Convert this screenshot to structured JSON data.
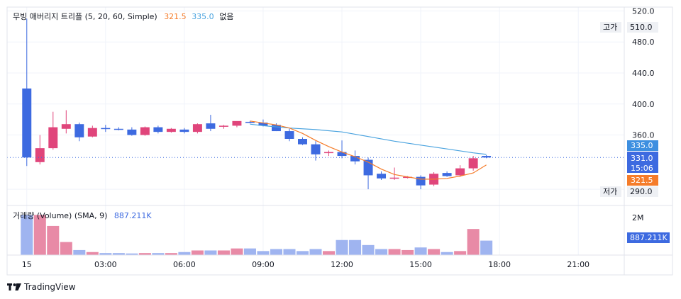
{
  "legend_main": {
    "title": "무빙 애버리지 트리플 (5, 20, 60, Simple)",
    "v1": "321.5",
    "v2": "335.0",
    "v3": "없음"
  },
  "legend_volume": {
    "title": "거래량 (Volume) (SMA, 9)",
    "value": "887.211K"
  },
  "high_label": "고가",
  "low_label": "저가",
  "price_tags": {
    "ma_long": "335.0",
    "last": "331.0",
    "countdown": "15:06",
    "ma_short": "321.5",
    "high": "510.0",
    "low": "290.0"
  },
  "volume_tags": {
    "top": "2M",
    "sma": "887.211K"
  },
  "brand": "TradingView",
  "colors": {
    "up": "#e0457b",
    "down": "#3d6ae0",
    "up_vol": "#e88aa6",
    "down_vol": "#9fb4f0",
    "ma_short": "#f57c2a",
    "ma_long": "#4aa3df",
    "last_line": "#3d6ae0"
  },
  "chart_data": {
    "type": "candlestick",
    "y_ticks": [
      290,
      360,
      400,
      440,
      480,
      520
    ],
    "y_tick_labels": [
      "290.0",
      "360.0",
      "400.0",
      "440.0",
      "480.0",
      "520.0"
    ],
    "ylim": [
      270,
      525
    ],
    "x_tick_labels": [
      "15",
      "03:00",
      "06:00",
      "09:00",
      "12:00",
      "15:00",
      "18:00",
      "21:00"
    ],
    "x_tick_hours": [
      0,
      3,
      6,
      9,
      12,
      15,
      18,
      21
    ],
    "xlim_hours": [
      -0.75,
      22.75
    ],
    "last_price": 331,
    "candles": [
      {
        "t": 0,
        "o": 420,
        "h": 510,
        "l": 320,
        "c": 331
      },
      {
        "t": 0.5,
        "o": 325,
        "h": 360,
        "l": 322,
        "c": 343
      },
      {
        "t": 1,
        "o": 343,
        "h": 390,
        "l": 341,
        "c": 370
      },
      {
        "t": 1.5,
        "o": 368,
        "h": 392,
        "l": 362,
        "c": 374
      },
      {
        "t": 2,
        "o": 374,
        "h": 376,
        "l": 352,
        "c": 357
      },
      {
        "t": 2.5,
        "o": 358,
        "h": 372,
        "l": 357,
        "c": 369
      },
      {
        "t": 3,
        "o": 369,
        "h": 373,
        "l": 364,
        "c": 368
      },
      {
        "t": 3.5,
        "o": 368,
        "h": 370,
        "l": 366,
        "c": 367
      },
      {
        "t": 4,
        "o": 367,
        "h": 370,
        "l": 359,
        "c": 360
      },
      {
        "t": 4.5,
        "o": 360,
        "h": 371,
        "l": 359,
        "c": 370
      },
      {
        "t": 5,
        "o": 370,
        "h": 372,
        "l": 362,
        "c": 364
      },
      {
        "t": 5.5,
        "o": 364,
        "h": 369,
        "l": 363,
        "c": 368
      },
      {
        "t": 6,
        "o": 367,
        "h": 369,
        "l": 362,
        "c": 364
      },
      {
        "t": 6.5,
        "o": 364,
        "h": 375,
        "l": 362,
        "c": 374
      },
      {
        "t": 7,
        "o": 375,
        "h": 386,
        "l": 365,
        "c": 368
      },
      {
        "t": 7.5,
        "o": 371,
        "h": 373,
        "l": 368,
        "c": 372
      },
      {
        "t": 8,
        "o": 372,
        "h": 377,
        "l": 370,
        "c": 378
      },
      {
        "t": 8.5,
        "o": 377,
        "h": 378,
        "l": 375,
        "c": 376
      },
      {
        "t": 9,
        "o": 376,
        "h": 380,
        "l": 371,
        "c": 372
      },
      {
        "t": 9.5,
        "o": 373,
        "h": 375,
        "l": 365,
        "c": 365
      },
      {
        "t": 10,
        "o": 365,
        "h": 368,
        "l": 352,
        "c": 355
      },
      {
        "t": 10.5,
        "o": 355,
        "h": 357,
        "l": 347,
        "c": 348
      },
      {
        "t": 11,
        "o": 348,
        "h": 352,
        "l": 327,
        "c": 335
      },
      {
        "t": 11.5,
        "o": 337,
        "h": 340,
        "l": 333,
        "c": 338
      },
      {
        "t": 12,
        "o": 338,
        "h": 353,
        "l": 330,
        "c": 333
      },
      {
        "t": 12.5,
        "o": 333,
        "h": 340,
        "l": 322,
        "c": 326
      },
      {
        "t": 13,
        "o": 328,
        "h": 331,
        "l": 290,
        "c": 308
      },
      {
        "t": 13.5,
        "o": 310,
        "h": 313,
        "l": 302,
        "c": 304
      },
      {
        "t": 14,
        "o": 304,
        "h": 318,
        "l": 302,
        "c": 305
      },
      {
        "t": 14.5,
        "o": 306,
        "h": 307,
        "l": 304,
        "c": 306
      },
      {
        "t": 15,
        "o": 306,
        "h": 308,
        "l": 290,
        "c": 295
      },
      {
        "t": 15.5,
        "o": 296,
        "h": 312,
        "l": 294,
        "c": 310
      },
      {
        "t": 16,
        "o": 311,
        "h": 313,
        "l": 306,
        "c": 307
      },
      {
        "t": 16.5,
        "o": 308,
        "h": 321,
        "l": 306,
        "c": 317
      },
      {
        "t": 17,
        "o": 317,
        "h": 333,
        "l": 314,
        "c": 330
      },
      {
        "t": 17.5,
        "o": 333,
        "h": 334,
        "l": 330,
        "c": 331
      }
    ],
    "volume_ylim": [
      0,
      2400000
    ],
    "volume": [
      2000000,
      2000000,
      1450000,
      650000,
      250000,
      150000,
      100000,
      100000,
      80000,
      100000,
      100000,
      100000,
      150000,
      230000,
      230000,
      230000,
      330000,
      330000,
      200000,
      300000,
      300000,
      200000,
      300000,
      200000,
      750000,
      750000,
      500000,
      300000,
      300000,
      250000,
      380000,
      300000,
      150000,
      200000,
      1300000,
      720000
    ],
    "ma_short": [
      [
        8.5,
        378
      ],
      [
        9.5,
        373
      ],
      [
        10,
        369
      ],
      [
        10.5,
        362
      ],
      [
        11,
        353
      ],
      [
        11.5,
        345
      ],
      [
        12,
        338
      ],
      [
        12.5,
        332
      ],
      [
        13,
        325
      ],
      [
        13.5,
        316
      ],
      [
        14,
        309
      ],
      [
        14.5,
        306
      ],
      [
        15,
        303
      ],
      [
        15.5,
        303
      ],
      [
        16,
        304
      ],
      [
        16.5,
        307
      ],
      [
        17,
        311
      ],
      [
        17.5,
        321.5
      ]
    ],
    "ma_long": [
      [
        8.5,
        374
      ],
      [
        9,
        372
      ],
      [
        10,
        369
      ],
      [
        11,
        367
      ],
      [
        12,
        364
      ],
      [
        13,
        358
      ],
      [
        14,
        352
      ],
      [
        15,
        347
      ],
      [
        16,
        342
      ],
      [
        17,
        337
      ],
      [
        17.5,
        335
      ]
    ]
  }
}
